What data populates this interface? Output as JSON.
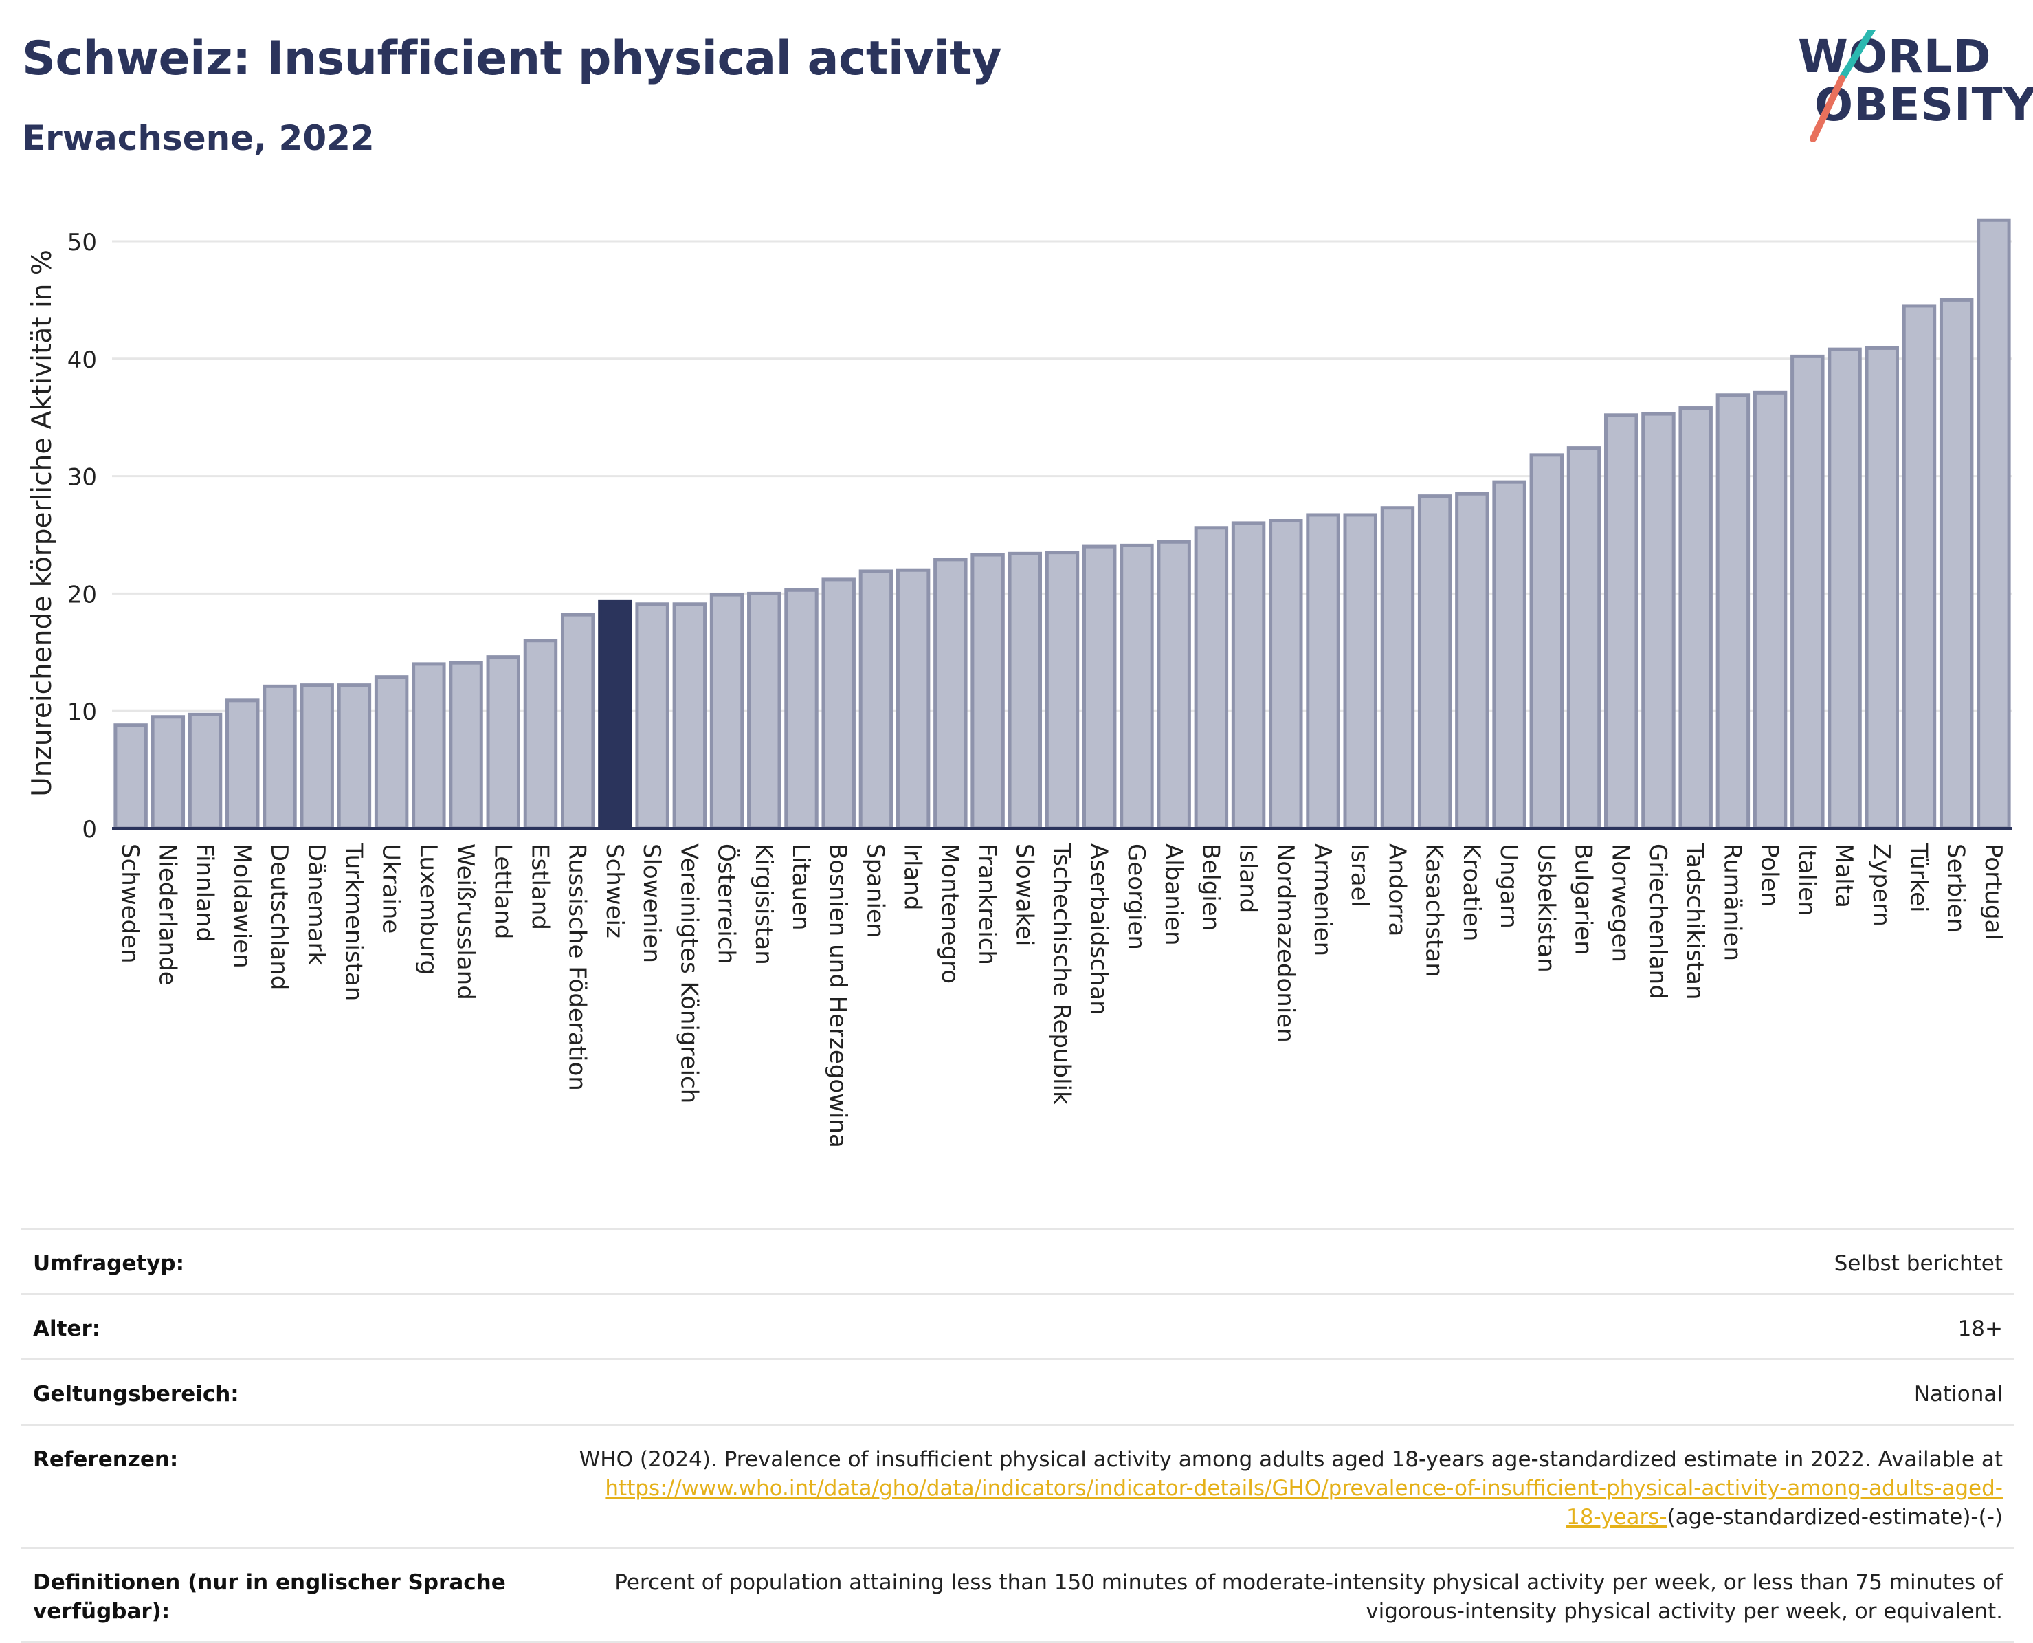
{
  "header": {
    "title": "Schweiz: Insufficient physical activity",
    "subtitle": "Erwachsene, 2022",
    "logo_line1": "WORLD",
    "logo_line2": "OBESITY"
  },
  "colors": {
    "bar_fill": "#b9bdcd",
    "bar_stroke": "#8e93ac",
    "highlight": "#2b345c",
    "axis": "#2b345c",
    "grid": "#e6e6e6",
    "logo_slash_top": "#2bb8b0",
    "logo_slash_bottom": "#e8705c"
  },
  "chart_data": {
    "type": "bar",
    "ylabel": "Unzureichende körperliche Aktivität in %",
    "ylim": [
      0,
      52
    ],
    "yticks": [
      0,
      10,
      20,
      30,
      40,
      50
    ],
    "grid": true,
    "highlight": "Schweiz",
    "categories": [
      "Schweden",
      "Niederlande",
      "Finnland",
      "Moldawien",
      "Deutschland",
      "Dänemark",
      "Turkmenistan",
      "Ukraine",
      "Luxemburg",
      "Weißrussland",
      "Lettland",
      "Estland",
      "Russische Föderation",
      "Schweiz",
      "Slowenien",
      "Vereinigtes Königreich",
      "Österreich",
      "Kirgisistan",
      "Litauen",
      "Bosnien und Herzegowina",
      "Spanien",
      "Irland",
      "Montenegro",
      "Frankreich",
      "Slowakei",
      "Tschechische Republik",
      "Aserbaidschan",
      "Georgien",
      "Albanien",
      "Belgien",
      "Island",
      "Nordmazedonien",
      "Armenien",
      "Israel",
      "Andorra",
      "Kasachstan",
      "Kroatien",
      "Ungarn",
      "Usbekistan",
      "Bulgarien",
      "Norwegen",
      "Griechenland",
      "Tadschikistan",
      "Rumänien",
      "Polen",
      "Italien",
      "Malta",
      "Zypern",
      "Türkei",
      "Serbien",
      "Portugal"
    ],
    "values": [
      8.8,
      9.5,
      9.7,
      10.9,
      12.1,
      12.2,
      12.2,
      12.9,
      14.0,
      14.1,
      14.6,
      16.0,
      18.2,
      19.3,
      19.1,
      19.1,
      19.9,
      20.0,
      20.3,
      21.2,
      21.9,
      22.0,
      22.9,
      23.3,
      23.4,
      23.5,
      24.0,
      24.1,
      24.4,
      25.6,
      26.0,
      26.2,
      26.7,
      26.7,
      27.3,
      28.3,
      28.5,
      29.5,
      31.8,
      32.4,
      35.2,
      35.3,
      35.8,
      36.9,
      37.1,
      40.2,
      40.8,
      40.9,
      44.5,
      45.0,
      51.8
    ]
  },
  "info": {
    "survey_label": "Umfragetyp:",
    "survey_value": "Selbst berichtet",
    "age_label": "Alter:",
    "age_value": "18+",
    "scope_label": "Geltungsbereich:",
    "scope_value": "National",
    "ref_label": "Referenzen:",
    "ref_text": "WHO (2024). Prevalence of insufficient physical activity among adults aged 18-years age-standardized estimate in 2022. Available at",
    "ref_link_1": "https://www.who.int/data/gho/data/indicators/indicator-details/GHO/prevalence-of-insufficient-physical-activity-among-adults-aged-",
    "ref_link_2": "18-years-",
    "ref_suffix": "(age-standardized-estimate)-(-)",
    "def_label": "Definitionen (nur in englischer Sprache verfügbar):",
    "def_value": "Percent of population attaining less than 150 minutes of moderate-intensity physical activity per week, or less than 75 minutes of vigorous-intensity physical activity per week, or equivalent."
  }
}
